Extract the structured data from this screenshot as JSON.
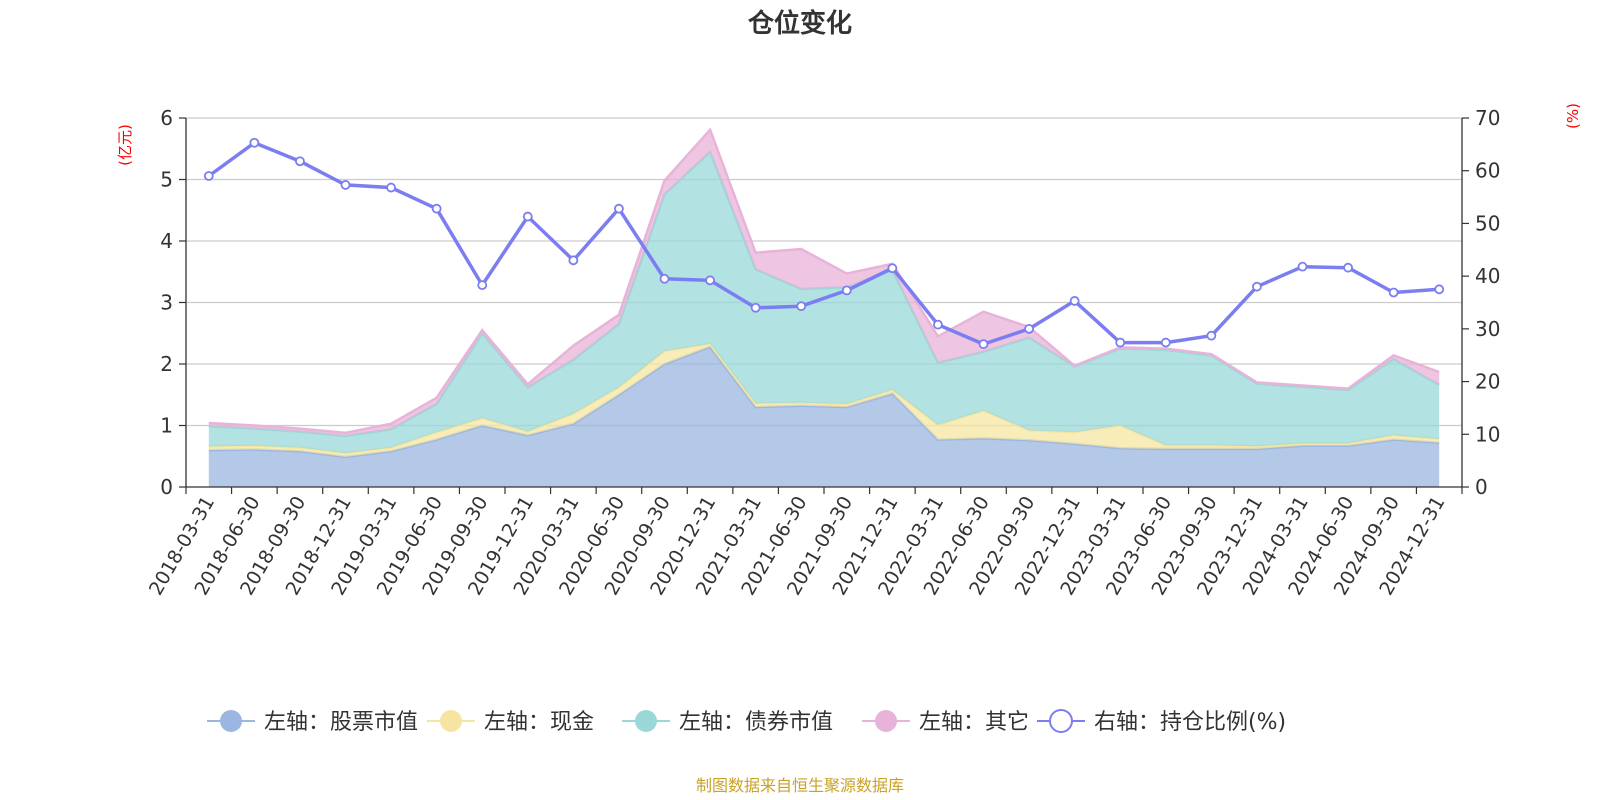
{
  "chart_data": {
    "type": "area",
    "title": "仓位变化",
    "left_axis_unit": "(亿元)",
    "right_axis_unit": "(%)",
    "left_ylim": [
      0,
      6
    ],
    "left_ticks": [
      "0",
      "1",
      "2",
      "3",
      "4",
      "5",
      "6"
    ],
    "right_ylim": [
      0,
      70
    ],
    "right_ticks": [
      "0",
      "10",
      "20",
      "30",
      "40",
      "50",
      "60",
      "70"
    ],
    "categories": [
      "2018-03-31",
      "2018-06-30",
      "2018-09-30",
      "2018-12-31",
      "2019-03-31",
      "2019-06-30",
      "2019-09-30",
      "2019-12-31",
      "2020-03-31",
      "2020-06-30",
      "2020-09-30",
      "2020-12-31",
      "2021-03-31",
      "2021-06-30",
      "2021-09-30",
      "2021-12-31",
      "2022-03-31",
      "2022-06-30",
      "2022-09-30",
      "2022-12-31",
      "2023-03-31",
      "2023-06-30",
      "2023-09-30",
      "2023-12-31",
      "2024-03-31",
      "2024-06-30",
      "2024-09-30",
      "2024-12-31"
    ],
    "series": [
      {
        "name": "左轴：股票市值",
        "axis": "left",
        "kind": "stacked-area",
        "color": "#9bb6e0",
        "values": [
          0.6,
          0.61,
          0.58,
          0.49,
          0.58,
          0.77,
          1.0,
          0.84,
          1.03,
          1.5,
          2.0,
          2.28,
          1.3,
          1.32,
          1.3,
          1.52,
          0.77,
          0.79,
          0.76,
          0.7,
          0.63,
          0.62,
          0.62,
          0.62,
          0.67,
          0.67,
          0.77,
          0.72
        ]
      },
      {
        "name": "左轴：现金",
        "axis": "left",
        "kind": "stacked-area",
        "color": "#f6e5a2",
        "values": [
          0.06,
          0.06,
          0.06,
          0.06,
          0.06,
          0.12,
          0.12,
          0.06,
          0.16,
          0.12,
          0.21,
          0.05,
          0.06,
          0.05,
          0.05,
          0.06,
          0.24,
          0.45,
          0.16,
          0.19,
          0.37,
          0.06,
          0.06,
          0.04,
          0.04,
          0.04,
          0.07,
          0.06
        ]
      },
      {
        "name": "左轴：债券市值",
        "axis": "left",
        "kind": "stacked-area",
        "color": "#9ad8d8",
        "values": [
          0.33,
          0.28,
          0.26,
          0.28,
          0.3,
          0.46,
          1.38,
          0.72,
          0.88,
          1.03,
          2.55,
          3.12,
          2.18,
          1.85,
          1.9,
          1.95,
          1.01,
          0.96,
          1.51,
          1.07,
          1.25,
          1.55,
          1.46,
          1.02,
          0.92,
          0.87,
          1.24,
          0.88
        ]
      },
      {
        "name": "左轴：其它",
        "axis": "left",
        "kind": "stacked-area",
        "color": "#e8b3d8",
        "values": [
          0.05,
          0.05,
          0.05,
          0.05,
          0.09,
          0.1,
          0.05,
          0.05,
          0.23,
          0.15,
          0.22,
          0.36,
          0.27,
          0.65,
          0.22,
          0.1,
          0.43,
          0.65,
          0.17,
          0.01,
          0.02,
          0.02,
          0.02,
          0.02,
          0.02,
          0.02,
          0.06,
          0.21
        ]
      },
      {
        "name": "右轴：持仓比例(%)",
        "axis": "right",
        "kind": "line",
        "color": "#7b7ef0",
        "values": [
          59.0,
          65.3,
          61.8,
          57.3,
          56.8,
          52.8,
          38.3,
          51.3,
          43.0,
          52.8,
          39.5,
          39.2,
          34.0,
          34.3,
          37.3,
          41.5,
          30.8,
          27.1,
          30.0,
          35.3,
          27.4,
          27.4,
          28.7,
          38.0,
          41.8,
          41.6,
          36.9,
          37.5
        ]
      }
    ],
    "legend_position": "bottom",
    "grid": true,
    "source_note": "制图数据来自恒生聚源数据库"
  },
  "colors": {
    "title": "#333333",
    "axis_unit": "#ff0000",
    "grid": "#cccccc",
    "axis_line": "#333333",
    "source_note": "#c9a227"
  }
}
